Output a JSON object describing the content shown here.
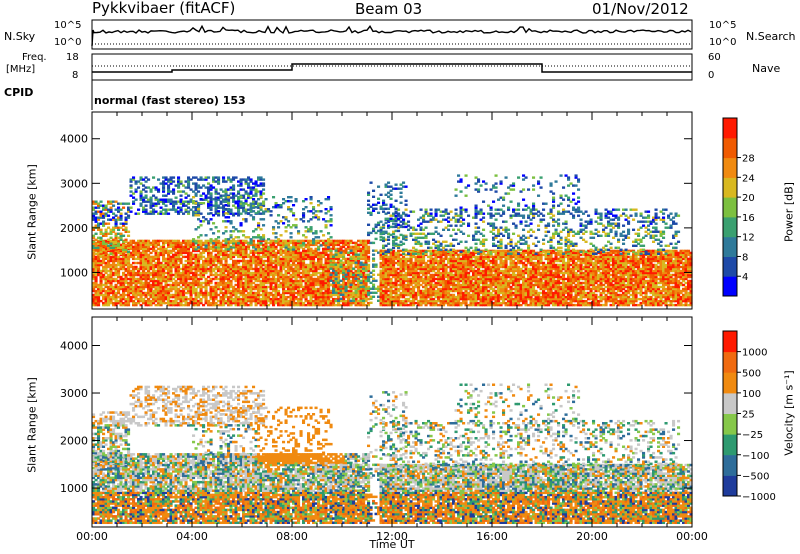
{
  "header": {
    "radar": "Pykkvibaer (fitACF)",
    "beam": "Beam 03",
    "date": "01/Nov/2012"
  },
  "top_panels": {
    "nsky_label": "N.Sky",
    "nsky_ticks": [
      "10^5",
      "10^0"
    ],
    "nsearch_label": "N.Search",
    "nsearch_ticks": [
      "10^5",
      "10^0"
    ],
    "freq_label": "Freq.",
    "freq_unit": "[MHz]",
    "freq_ticks": [
      "18",
      "8"
    ],
    "nave_label": "Nave",
    "nave_ticks": [
      "60",
      "0"
    ],
    "cpid_label": "CPID",
    "cpid_value": "normal (fast stereo) 153"
  },
  "chart_data": [
    {
      "type": "heatmap",
      "name": "power",
      "ylabel": "Slant Range [km]",
      "yticks": [
        "1000",
        "2000",
        "3000",
        "4000"
      ],
      "ylim": [
        180,
        4600
      ],
      "xlim": [
        0,
        24
      ],
      "colorbar": {
        "label": "Power [dB]",
        "ticks": [
          "4",
          "8",
          "12",
          "16",
          "20",
          "24",
          "28"
        ],
        "colors": [
          "#0000ff",
          "#1e4aa8",
          "#2f7a9a",
          "#3aa070",
          "#7cc040",
          "#d8b820",
          "#f08a10",
          "#f05a00",
          "#ff1a00"
        ]
      }
    },
    {
      "type": "heatmap",
      "name": "velocity",
      "ylabel": "Slant Range [km]",
      "yticks": [
        "1000",
        "2000",
        "3000",
        "4000"
      ],
      "ylim": [
        180,
        4600
      ],
      "xlim": [
        0,
        24
      ],
      "xticks": [
        "00:00",
        "04:00",
        "08:00",
        "12:00",
        "16:00",
        "20:00",
        "00:00"
      ],
      "xlabel": "Time UT",
      "colorbar": {
        "label": "Velocity [m s⁻¹]",
        "ticks": [
          "1000",
          "500",
          "100",
          "25",
          "−25",
          "−100",
          "−500",
          "−1000"
        ],
        "colors": [
          "#1f3c9c",
          "#2e6d9a",
          "#2e9a70",
          "#86c84a",
          "#c8c8c8",
          "#f08a10",
          "#f06a10",
          "#ff1a00"
        ]
      }
    }
  ],
  "colors": {
    "power_low": "#0000ff",
    "power_high": "#ff1a00",
    "velocity_toward": "#1f3c9c",
    "velocity_away": "#ff1a00",
    "ground_scatter": "#c8c8c8"
  }
}
